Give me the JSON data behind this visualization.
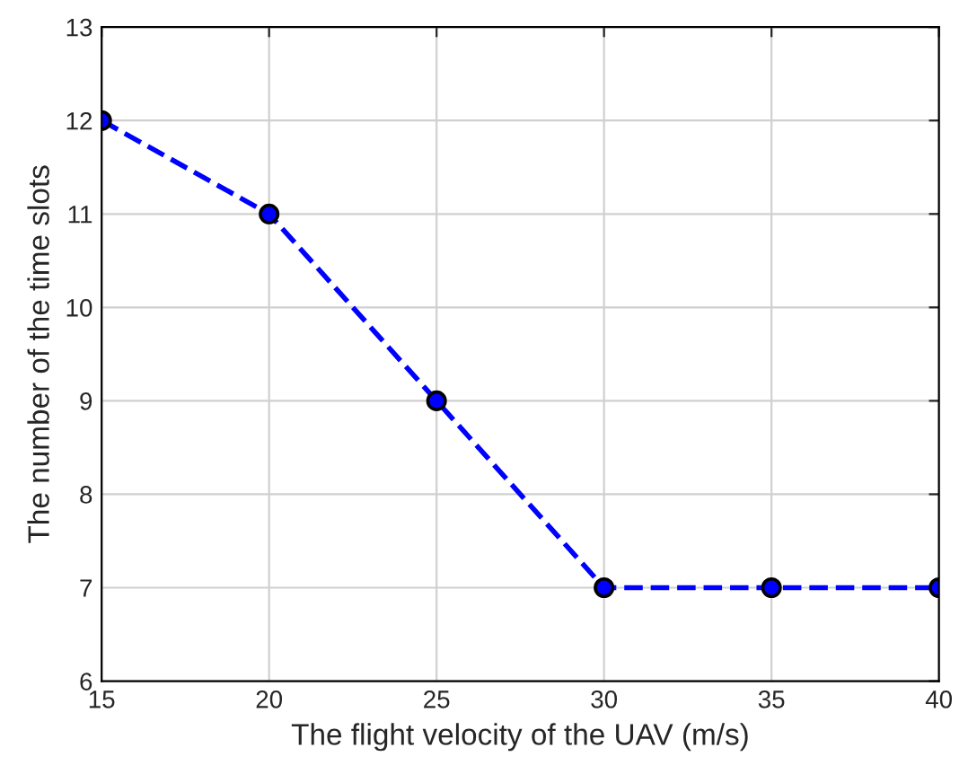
{
  "chart_data": {
    "type": "line",
    "xlabel": "The flight velocity of the UAV (m/s)",
    "ylabel": "The number of the time slots",
    "x": [
      15,
      20,
      25,
      30,
      35,
      40
    ],
    "series": [
      {
        "color": "#0000ff",
        "values": [
          12,
          11,
          9,
          7,
          7,
          7
        ]
      }
    ],
    "xlim": [
      15,
      40
    ],
    "xticks": [
      15,
      20,
      25,
      30,
      35,
      40
    ],
    "ylim": [
      6,
      13
    ],
    "yticks": [
      6,
      7,
      8,
      9,
      10,
      11,
      12,
      13
    ],
    "grid": true,
    "marker": "circle",
    "line_style": "dashed"
  }
}
